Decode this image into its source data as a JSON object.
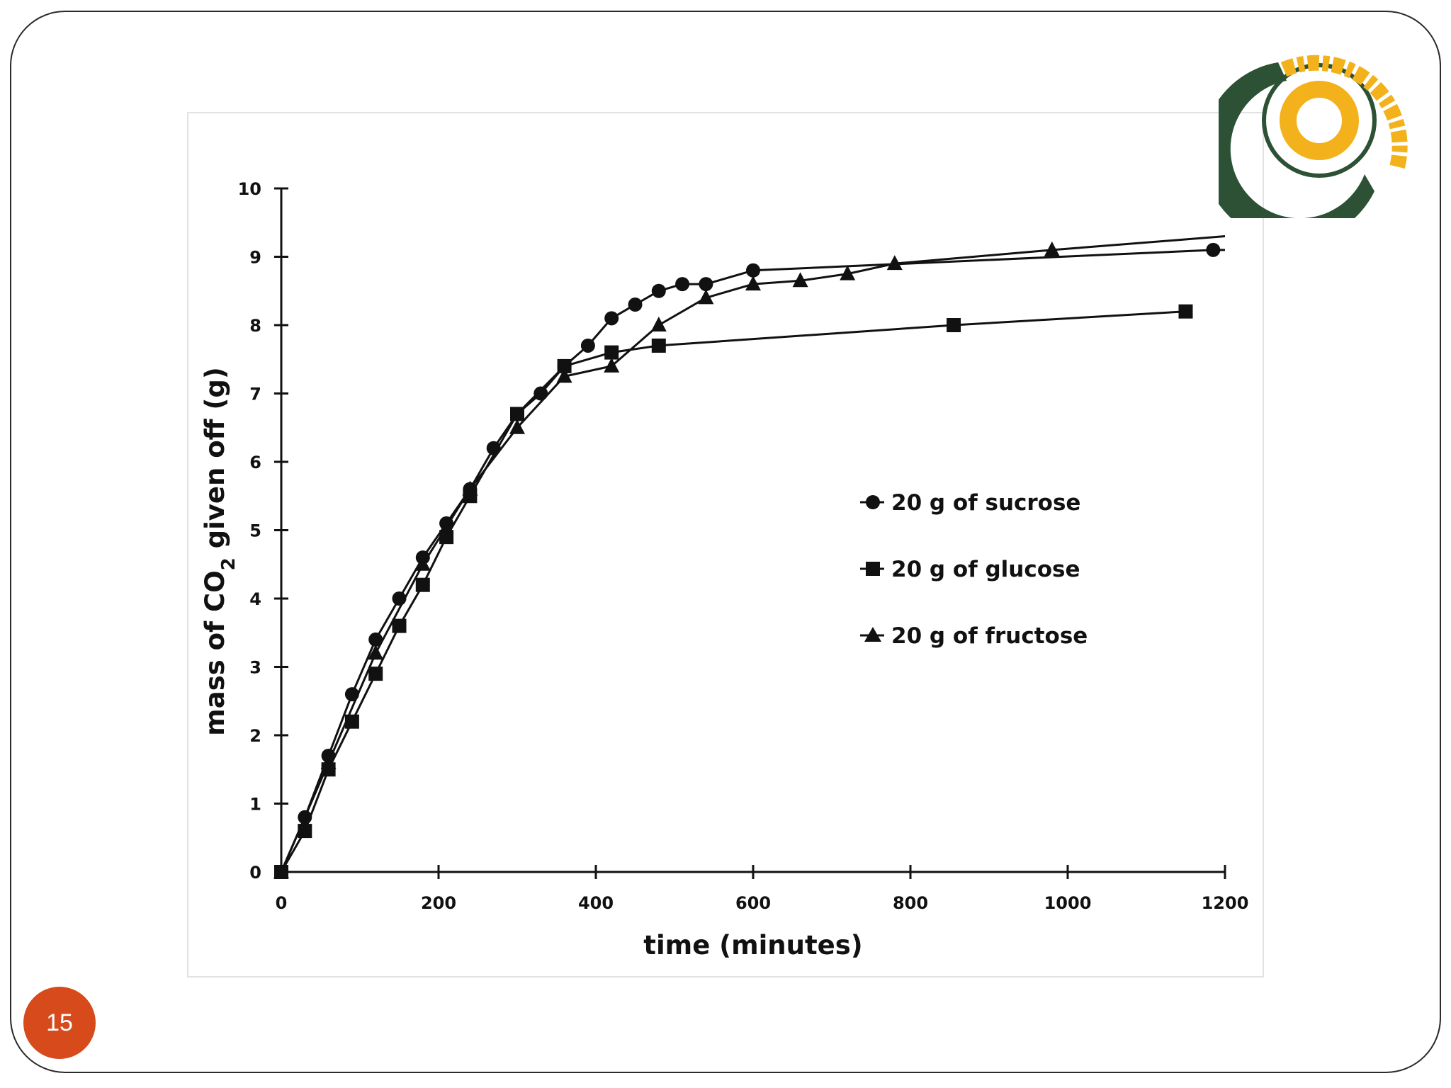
{
  "slide": {
    "page_number": "15"
  },
  "logo": {
    "lettering": "decorative glyph ring",
    "colors": {
      "green": "#2c5134",
      "gold": "#f3b21b"
    }
  },
  "chart_data": {
    "type": "line",
    "title": "",
    "xlabel": "time (minutes)",
    "ylabel_main": "mass of CO",
    "ylabel_sub": "2",
    "ylabel_tail": " given off (g)",
    "xlim": [
      0,
      1200
    ],
    "ylim": [
      0,
      10
    ],
    "xticks": [
      0,
      200,
      400,
      600,
      800,
      1000,
      1200
    ],
    "yticks": [
      0,
      1,
      2,
      3,
      4,
      5,
      6,
      7,
      8,
      9,
      10
    ],
    "grid": false,
    "legend_position": "center-right",
    "series": [
      {
        "name": "20 g of sucrose",
        "marker": "circle",
        "x": [
          0,
          30,
          60,
          90,
          120,
          150,
          180,
          210,
          240,
          270,
          300,
          330,
          360,
          390,
          420,
          450,
          480,
          510,
          540,
          600,
          1185
        ],
        "y": [
          0,
          0.8,
          1.7,
          2.6,
          3.4,
          4.0,
          4.6,
          5.1,
          5.6,
          6.2,
          6.7,
          7.0,
          7.4,
          7.7,
          8.1,
          8.3,
          8.5,
          8.6,
          8.6,
          8.8,
          9.1
        ],
        "line_to": [
          1200,
          9.1
        ]
      },
      {
        "name": "20 g of glucose",
        "marker": "square",
        "x": [
          0,
          30,
          60,
          90,
          120,
          150,
          180,
          210,
          240,
          300,
          360,
          420,
          480,
          855,
          1150
        ],
        "y": [
          0,
          0.6,
          1.5,
          2.2,
          2.9,
          3.6,
          4.2,
          4.9,
          5.5,
          6.7,
          7.4,
          7.6,
          7.7,
          8.0,
          8.2
        ]
      },
      {
        "name": "20 g of fructose",
        "marker": "triangle",
        "x": [
          0,
          60,
          120,
          180,
          240,
          300,
          360,
          420,
          480,
          540,
          600,
          660,
          720,
          780,
          980
        ],
        "y": [
          0,
          1.6,
          3.2,
          4.5,
          5.6,
          6.5,
          7.25,
          7.4,
          8.0,
          8.4,
          8.6,
          8.65,
          8.75,
          8.9,
          9.1
        ],
        "line_to": [
          1200,
          9.3
        ]
      }
    ]
  }
}
